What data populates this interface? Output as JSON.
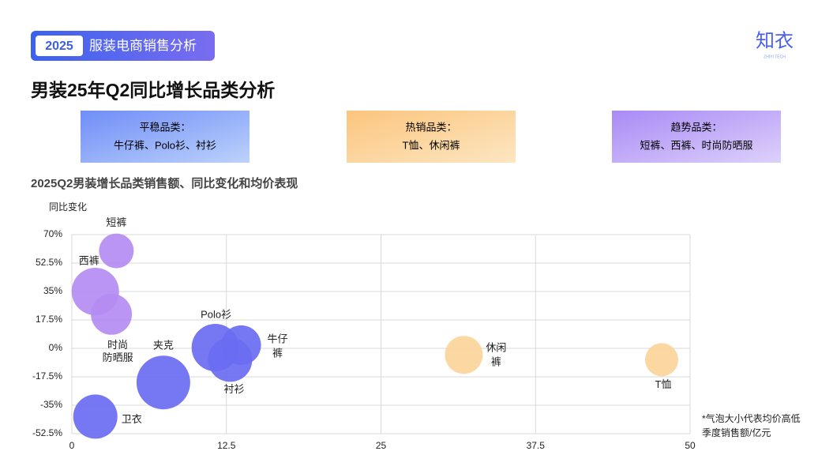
{
  "header": {
    "badge": "2025",
    "title": "服装电商销售分析",
    "logo": "知衣",
    "logo_sub": "ZHIYI TECH"
  },
  "page_title": "男装25年Q2同比增长品类分析",
  "groups": [
    {
      "title": "平稳品类：",
      "items": "牛仔裤、Polo衫、衬衫"
    },
    {
      "title": "热销品类：",
      "items": "T恤、休闲裤"
    },
    {
      "title": "趋势品类：",
      "items": "短裤、西裤、时尚防晒服"
    }
  ],
  "chart_data": {
    "type": "bubble",
    "title": "2025Q2男装增长品类销售额、同比变化和均价表现",
    "y_label": "同比变化",
    "x_label": "季度销售额/亿元",
    "note": "*气泡大小代表均价高低",
    "points": [
      {
        "label": [
          "短裤"
        ],
        "x": 3.6,
        "y": 60,
        "size": 22,
        "color": "#b48cf2"
      },
      {
        "label": [
          "西裤"
        ],
        "x": 1.9,
        "y": 35,
        "size": 30,
        "color": "#b48cf2"
      },
      {
        "label": [
          "时尚",
          "防晒服"
        ],
        "x": 3.2,
        "y": 21,
        "size": 26,
        "color": "#b48cf2"
      },
      {
        "label": [
          "Polo衫"
        ],
        "x": 11.6,
        "y": 0.5,
        "size": 30,
        "color": "#6a6cf2"
      },
      {
        "label": [
          "牛仔",
          "裤"
        ],
        "x": 13.7,
        "y": 2,
        "size": 25,
        "color": "#6a6cf2"
      },
      {
        "label": [
          "衬衫"
        ],
        "x": 12.8,
        "y": -7,
        "size": 28,
        "color": "#6a6cf2"
      },
      {
        "label": [
          "夹克"
        ],
        "x": 7.4,
        "y": -21,
        "size": 34,
        "color": "#6a6cf2"
      },
      {
        "label": [
          "卫衣"
        ],
        "x": 1.9,
        "y": -42,
        "size": 28,
        "color": "#6a6cf2"
      },
      {
        "label": [
          "休闲",
          "裤"
        ],
        "x": 31.7,
        "y": -4,
        "size": 24,
        "color": "#fbd49a"
      },
      {
        "label": [
          "T恤"
        ],
        "x": 47.7,
        "y": -7,
        "size": 21,
        "color": "#fbd49a"
      }
    ],
    "xlim": [
      0,
      50
    ],
    "xticks": [
      0,
      12.5,
      25,
      37.5,
      50
    ],
    "ylim": [
      -52.5,
      70
    ],
    "yticks": [
      {
        "value": -52.5,
        "label": "-52.5%"
      },
      {
        "value": -35,
        "label": "-35%"
      },
      {
        "value": -17.5,
        "label": "-17.5%"
      },
      {
        "value": 0,
        "label": "0%"
      },
      {
        "value": 17.5,
        "label": "17.5%"
      },
      {
        "value": 35,
        "label": "35%"
      },
      {
        "value": 52.5,
        "label": "52.5%"
      },
      {
        "value": 70,
        "label": "70%"
      }
    ],
    "grid": true
  }
}
